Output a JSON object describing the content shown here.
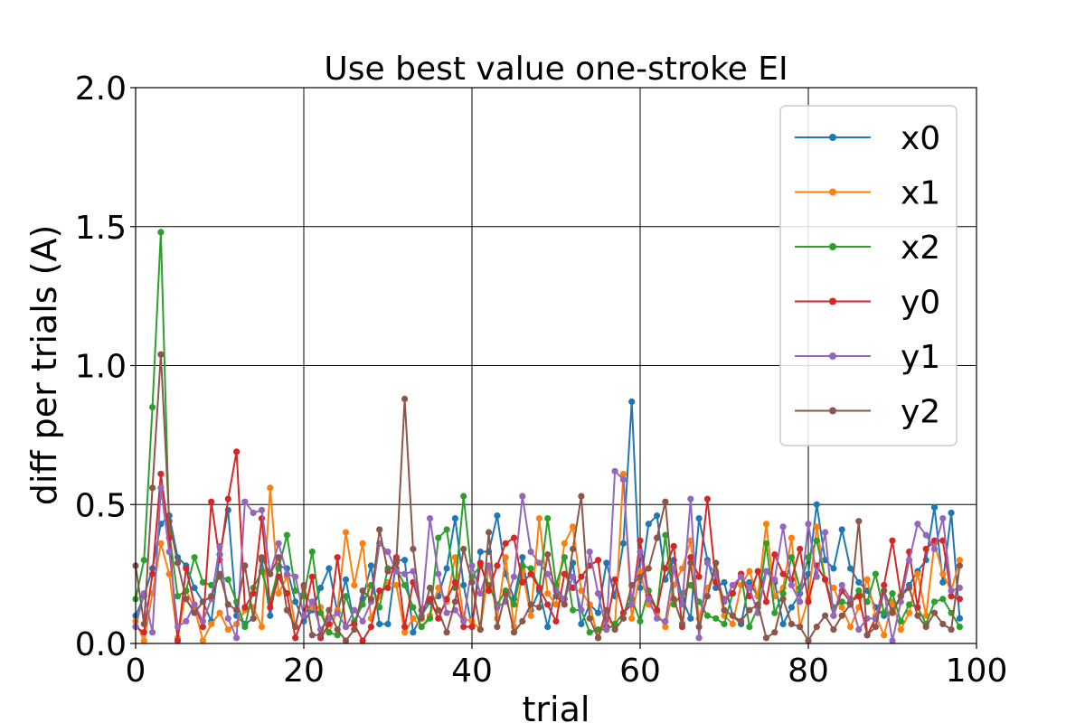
{
  "chart_data": {
    "type": "line",
    "title": "Use best value one-stroke EI",
    "xlabel": "trial",
    "ylabel": "diff  per  trials (A)",
    "xlim": [
      0,
      100
    ],
    "ylim": [
      0,
      2.0
    ],
    "xticks": [
      "0",
      "20",
      "40",
      "60",
      "80",
      "100"
    ],
    "yticks": [
      "0.0",
      "0.5",
      "1.0",
      "1.5",
      "2.0"
    ],
    "grid": true,
    "legend_position": "top-right",
    "x": [
      0,
      1,
      2,
      3,
      4,
      5,
      6,
      7,
      8,
      9,
      10,
      11,
      12,
      13,
      14,
      15,
      16,
      17,
      18,
      19,
      20,
      21,
      22,
      23,
      24,
      25,
      26,
      27,
      28,
      29,
      30,
      31,
      32,
      33,
      34,
      35,
      36,
      37,
      38,
      39,
      40,
      41,
      42,
      43,
      44,
      45,
      46,
      47,
      48,
      49,
      50,
      51,
      52,
      53,
      54,
      55,
      56,
      57,
      58,
      59,
      60,
      61,
      62,
      63,
      64,
      65,
      66,
      67,
      68,
      69,
      70,
      71,
      72,
      73,
      74,
      75,
      76,
      77,
      78,
      79,
      80,
      81,
      82,
      83,
      84,
      85,
      86,
      87,
      88,
      89,
      90,
      91,
      92,
      93,
      94,
      95,
      96,
      97,
      98
    ],
    "series": [
      {
        "name": "x0",
        "color": "#1f77b4",
        "values": [
          0.1,
          0.17,
          0.27,
          0.43,
          0.46,
          0.31,
          0.28,
          0.2,
          0.15,
          0.08,
          0.32,
          0.48,
          0.1,
          0.07,
          0.09,
          0.3,
          0.1,
          0.28,
          0.27,
          0.15,
          0.08,
          0.12,
          0.2,
          0.27,
          0.11,
          0.23,
          0.07,
          0.16,
          0.28,
          0.07,
          0.07,
          0.3,
          0.3,
          0.04,
          0.1,
          0.15,
          0.17,
          0.27,
          0.45,
          0.21,
          0.06,
          0.33,
          0.33,
          0.46,
          0.25,
          0.16,
          0.31,
          0.12,
          0.19,
          0.06,
          0.2,
          0.16,
          0.29,
          0.07,
          0.14,
          0.11,
          0.29,
          0.17,
          0.36,
          0.87,
          0.2,
          0.43,
          0.46,
          0.23,
          0.3,
          0.16,
          0.09,
          0.45,
          0.3,
          0.2,
          0.22,
          0.1,
          0.07,
          0.22,
          0.17,
          0.26,
          0.22,
          0.07,
          0.13,
          0.18,
          0.25,
          0.5,
          0.3,
          0.27,
          0.41,
          0.27,
          0.22,
          0.19,
          0.13,
          0.1,
          0.12,
          0.17,
          0.21,
          0.26,
          0.3,
          0.49,
          0.22,
          0.47,
          0.09
        ]
      },
      {
        "name": "x1",
        "color": "#ff7f0e",
        "values": [
          0.08,
          0.01,
          0.18,
          0.36,
          0.25,
          0.02,
          0.19,
          0.13,
          0.01,
          0.07,
          0.11,
          0.05,
          0.07,
          0.12,
          0.13,
          0.06,
          0.56,
          0.18,
          0.24,
          0.06,
          0.2,
          0.13,
          0.13,
          0.04,
          0.12,
          0.4,
          0.21,
          0.36,
          0.09,
          0.17,
          0.22,
          0.21,
          0.04,
          0.09,
          0.06,
          0.1,
          0.2,
          0.15,
          0.31,
          0.09,
          0.08,
          0.05,
          0.27,
          0.09,
          0.31,
          0.06,
          0.26,
          0.1,
          0.45,
          0.18,
          0.14,
          0.36,
          0.42,
          0.19,
          0.14,
          0.02,
          0.09,
          0.06,
          0.61,
          0.09,
          0.26,
          0.14,
          0.11,
          0.06,
          0.21,
          0.27,
          0.37,
          0.09,
          0.2,
          0.26,
          0.1,
          0.07,
          0.21,
          0.26,
          0.17,
          0.43,
          0.17,
          0.2,
          0.38,
          0.06,
          0.16,
          0.42,
          0.23,
          0.2,
          0.13,
          0.06,
          0.13,
          0.23,
          0.1,
          0.03,
          0.15,
          0.05,
          0.11,
          0.25,
          0.1,
          0.36,
          0.25,
          0.19,
          0.3
        ]
      },
      {
        "name": "x2",
        "color": "#2ca02c",
        "values": [
          0.16,
          0.3,
          0.85,
          1.48,
          0.4,
          0.17,
          0.19,
          0.31,
          0.22,
          0.21,
          0.24,
          0.23,
          0.15,
          0.06,
          0.2,
          0.26,
          0.15,
          0.27,
          0.39,
          0.19,
          0.17,
          0.33,
          0.11,
          0.04,
          0.03,
          0.17,
          0.08,
          0.14,
          0.21,
          0.13,
          0.27,
          0.27,
          0.21,
          0.13,
          0.06,
          0.09,
          0.38,
          0.41,
          0.2,
          0.53,
          0.24,
          0.28,
          0.21,
          0.14,
          0.19,
          0.14,
          0.28,
          0.27,
          0.2,
          0.45,
          0.21,
          0.31,
          0.12,
          0.12,
          0.04,
          0.05,
          0.05,
          0.07,
          0.11,
          0.16,
          0.08,
          0.19,
          0.12,
          0.39,
          0.14,
          0.18,
          0.21,
          0.15,
          0.1,
          0.09,
          0.07,
          0.18,
          0.25,
          0.06,
          0.13,
          0.36,
          0.11,
          0.18,
          0.31,
          0.2,
          0.31,
          0.37,
          0.23,
          0.13,
          0.15,
          0.14,
          0.19,
          0.15,
          0.25,
          0.11,
          0.18,
          0.08,
          0.14,
          0.13,
          0.07,
          0.15,
          0.16,
          0.11,
          0.06
        ]
      },
      {
        "name": "y0",
        "color": "#d62728",
        "values": [
          0.06,
          0.04,
          0.25,
          0.61,
          0.38,
          0.01,
          0.27,
          0.14,
          0.06,
          0.51,
          0.3,
          0.52,
          0.69,
          0.13,
          0.18,
          0.45,
          0.13,
          0.24,
          0.18,
          0.02,
          0.1,
          0.24,
          0.02,
          0.07,
          0.31,
          0.06,
          0.07,
          0.01,
          0.06,
          0.19,
          0.2,
          0.31,
          0.06,
          0.22,
          0.12,
          0.16,
          0.09,
          0.16,
          0.22,
          0.06,
          0.06,
          0.29,
          0.19,
          0.28,
          0.36,
          0.38,
          0.22,
          0.25,
          0.2,
          0.14,
          0.08,
          0.25,
          0.2,
          0.24,
          0.28,
          0.3,
          0.06,
          0.23,
          0.11,
          0.14,
          0.37,
          0.17,
          0.12,
          0.27,
          0.35,
          0.06,
          0.31,
          0.24,
          0.52,
          0.22,
          0.16,
          0.18,
          0.25,
          0.17,
          0.26,
          0.15,
          0.32,
          0.25,
          0.23,
          0.34,
          0.15,
          0.28,
          0.23,
          0.1,
          0.19,
          0.15,
          0.17,
          0.03,
          0.09,
          0.21,
          0.37,
          0.17,
          0.33,
          0.13,
          0.34,
          0.37,
          0.37,
          0.17,
          0.16
        ]
      },
      {
        "name": "y1",
        "color": "#9467bd",
        "values": [
          0.06,
          0.18,
          0.04,
          0.56,
          0.33,
          0.06,
          0.08,
          0.14,
          0.08,
          0.16,
          0.35,
          0.09,
          0.02,
          0.51,
          0.47,
          0.48,
          0.25,
          0.36,
          0.25,
          0.24,
          0.1,
          0.15,
          0.05,
          0.09,
          0.11,
          0.06,
          0.12,
          0.08,
          0.15,
          0.36,
          0.33,
          0.26,
          0.25,
          0.26,
          0.1,
          0.45,
          0.25,
          0.11,
          0.12,
          0.08,
          0.28,
          0.18,
          0.28,
          0.13,
          0.15,
          0.24,
          0.53,
          0.33,
          0.29,
          0.25,
          0.19,
          0.16,
          0.24,
          0.12,
          0.33,
          0.18,
          0.05,
          0.62,
          0.59,
          0.14,
          0.33,
          0.16,
          0.09,
          0.08,
          0.27,
          0.14,
          0.52,
          0.02,
          0.29,
          0.25,
          0.15,
          0.21,
          0.24,
          0.2,
          0.11,
          0.26,
          0.23,
          0.42,
          0.21,
          0.15,
          0.43,
          0.24,
          0.4,
          0.1,
          0.21,
          0.16,
          0.05,
          0.09,
          0.09,
          0.19,
          0.01,
          0.15,
          0.3,
          0.43,
          0.39,
          0.34,
          0.45,
          0.19,
          0.2
        ]
      },
      {
        "name": "y2",
        "color": "#8c564b",
        "values": [
          0.28,
          0.07,
          0.56,
          1.04,
          0.44,
          0.29,
          0.16,
          0.11,
          0.15,
          0.17,
          0.25,
          0.14,
          0.12,
          0.28,
          0.09,
          0.31,
          0.25,
          0.31,
          0.12,
          0.06,
          0.21,
          0.03,
          0.03,
          0.12,
          0.05,
          0.01,
          0.05,
          0.19,
          0.16,
          0.41,
          0.26,
          0.29,
          0.88,
          0.34,
          0.09,
          0.2,
          0.12,
          0.04,
          0.15,
          0.34,
          0.22,
          0.05,
          0.4,
          0.06,
          0.18,
          0.04,
          0.08,
          0.14,
          0.13,
          0.32,
          0.17,
          0.14,
          0.34,
          0.53,
          0.09,
          0.02,
          0.12,
          0.05,
          0.09,
          0.21,
          0.24,
          0.27,
          0.38,
          0.51,
          0.16,
          0.07,
          0.29,
          0.06,
          0.17,
          0.29,
          0.12,
          0.1,
          0.08,
          0.12,
          0.14,
          0.02,
          0.04,
          0.16,
          0.07,
          0.06,
          0.01,
          0.06,
          0.1,
          0.05,
          0.1,
          0.14,
          0.44,
          0.03,
          0.06,
          0.19,
          0.11,
          0.17,
          0.2,
          0.1,
          0.06,
          0.11,
          0.07,
          0.05,
          0.28
        ]
      }
    ]
  }
}
